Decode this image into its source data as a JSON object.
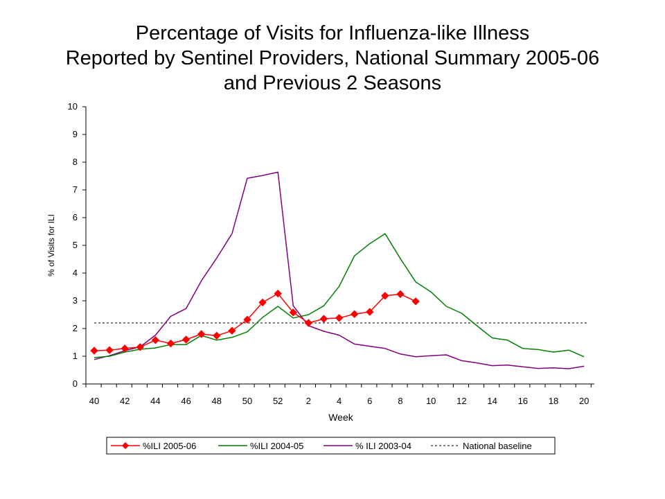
{
  "chart_data": {
    "type": "line",
    "title_lines": [
      "Percentage of Visits for Influenza-like Illness",
      "Reported by Sentinel Providers, National Summary 2005-06",
      "and Previous 2 Seasons"
    ],
    "xlabel": "Week",
    "ylabel": "% of Visits for ILI",
    "ylim": [
      0,
      10
    ],
    "y_ticks": [
      0,
      1,
      2,
      3,
      4,
      5,
      6,
      7,
      8,
      9,
      10
    ],
    "x_weeks": [
      40,
      41,
      42,
      43,
      44,
      45,
      46,
      47,
      48,
      49,
      50,
      51,
      52,
      1,
      2,
      3,
      4,
      5,
      6,
      7,
      8,
      9,
      10,
      11,
      12,
      13,
      14,
      15,
      16,
      17,
      18,
      19,
      20
    ],
    "x_tick_labels": [
      "40",
      "42",
      "44",
      "46",
      "48",
      "50",
      "52",
      "2",
      "4",
      "6",
      "8",
      "10",
      "12",
      "14",
      "16",
      "18",
      "20"
    ],
    "baseline": {
      "name": "National baseline",
      "value": 2.2
    },
    "series": [
      {
        "name": "%ILI 2005-06",
        "color": "#ff0000",
        "marker": "diamond",
        "values": [
          1.2,
          1.22,
          1.28,
          1.33,
          1.58,
          1.46,
          1.6,
          1.8,
          1.74,
          1.92,
          2.32,
          2.94,
          3.26,
          2.58,
          2.2,
          2.35,
          2.38,
          2.52,
          2.6,
          3.18,
          3.24,
          2.98
        ]
      },
      {
        "name": "%ILI 2004-05",
        "color": "#008000",
        "marker": "none",
        "values": [
          0.95,
          1.0,
          1.15,
          1.25,
          1.3,
          1.42,
          1.42,
          1.75,
          1.58,
          1.68,
          1.88,
          2.4,
          2.8,
          2.38,
          2.5,
          2.82,
          3.52,
          4.62,
          5.06,
          5.42,
          4.52,
          3.68,
          3.32,
          2.8,
          2.55,
          2.1,
          1.66,
          1.58,
          1.28,
          1.24,
          1.15,
          1.22,
          0.98
        ]
      },
      {
        "name": "% ILI 2003-04",
        "color": "#800080",
        "marker": "none",
        "values": [
          0.88,
          1.02,
          1.2,
          1.34,
          1.76,
          2.44,
          2.72,
          3.72,
          4.54,
          5.42,
          7.42,
          7.52,
          7.64,
          2.82,
          2.1,
          1.9,
          1.76,
          1.44,
          1.36,
          1.28,
          1.08,
          0.98,
          1.02,
          1.05,
          0.84,
          0.76,
          0.66,
          0.68,
          0.62,
          0.56,
          0.58,
          0.55,
          0.64
        ]
      }
    ],
    "legend": [
      "%ILI 2005-06",
      "%ILI 2004-05",
      "% ILI 2003-04",
      "National baseline"
    ],
    "legend_position": "bottom"
  }
}
